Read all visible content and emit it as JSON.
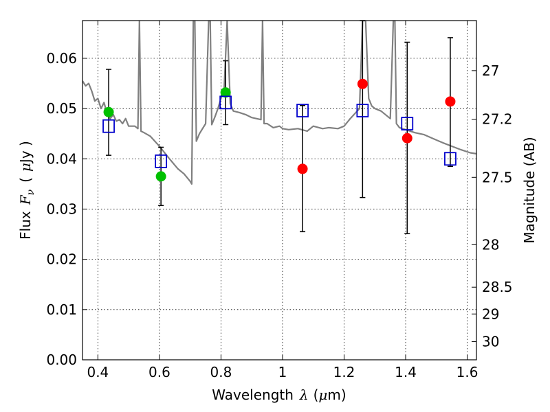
{
  "chart_data": {
    "type": "scatter",
    "xlabel_text": "Wavelength",
    "xlabel_symbol": "λ",
    "xlabel_unit_open": "(",
    "xlabel_unit_mu": "μ",
    "xlabel_unit_rest": "m)",
    "ylabel_text": "Flux",
    "ylabel_symbol": "F",
    "ylabel_subscript": "ν",
    "ylabel_unit_open": "(",
    "ylabel_unit_mu": "μ",
    "ylabel_unit_rest": "Jy )",
    "y2label": "Magnitude (AB)",
    "xlim": [
      0.35,
      1.63
    ],
    "ylim": [
      0.0,
      0.0675
    ],
    "grid": true,
    "x_ticks": [
      0.4,
      0.6,
      0.8,
      1.0,
      1.2,
      1.4,
      1.6
    ],
    "x_tick_labels": [
      "0.4",
      "0.6",
      "0.8",
      "1",
      "1.2",
      "1.4",
      "1.6"
    ],
    "y_ticks": [
      0.0,
      0.01,
      0.02,
      0.03,
      0.04,
      0.05,
      0.06
    ],
    "y_tick_labels": [
      "0.00",
      "0.01",
      "0.02",
      "0.03",
      "0.04",
      "0.05",
      "0.06"
    ],
    "magnitude_ticks": [
      27,
      27.2,
      27.5,
      28,
      28.5,
      29,
      30
    ],
    "magnitude_tick_labels": [
      "27",
      "27.2",
      "27.5",
      "28",
      "28.5",
      "29",
      "30"
    ],
    "series": [
      {
        "marker": "circle",
        "color": "#00c000",
        "x": [
          0.435,
          0.605,
          0.815
        ],
        "y": [
          0.0493,
          0.0365,
          0.0532
        ]
      },
      {
        "marker": "circle",
        "color": "#ff0000",
        "x": [
          1.065,
          1.26,
          1.405,
          1.545
        ],
        "y": [
          0.038,
          0.0549,
          0.0441,
          0.0514
        ]
      },
      {
        "marker": "square-open",
        "color": "#0000cc",
        "x": [
          0.435,
          0.605,
          0.815,
          1.065,
          1.26,
          1.405,
          1.545
        ],
        "y": [
          0.0465,
          0.0395,
          0.0512,
          0.0496,
          0.0496,
          0.047,
          0.04
        ]
      },
      {
        "marker": "errorbar",
        "color": "#000000",
        "x": [
          0.435,
          0.605,
          0.815,
          1.065,
          1.26,
          1.405,
          1.545
        ],
        "y_low": [
          0.0407,
          0.0307,
          0.0468,
          0.0255,
          0.0323,
          0.0251,
          0.0385
        ],
        "y_high": [
          0.0578,
          0.0423,
          0.0595,
          0.0506,
          0.0675,
          0.0632,
          0.0641
        ]
      },
      {
        "marker": "line",
        "color": "#808080",
        "x": [
          0.35,
          0.36,
          0.37,
          0.38,
          0.39,
          0.4,
          0.41,
          0.42,
          0.43,
          0.44,
          0.45,
          0.46,
          0.47,
          0.48,
          0.49,
          0.5,
          0.52,
          0.53,
          0.535,
          0.54,
          0.55,
          0.57,
          0.6,
          0.63,
          0.66,
          0.68,
          0.7,
          0.705,
          0.71,
          0.715,
          0.72,
          0.73,
          0.75,
          0.76,
          0.765,
          0.77,
          0.78,
          0.79,
          0.8,
          0.81,
          0.82,
          0.83,
          0.84,
          0.86,
          0.88,
          0.9,
          0.93,
          0.935,
          0.94,
          0.95,
          0.97,
          0.99,
          1.0,
          1.02,
          1.05,
          1.08,
          1.1,
          1.13,
          1.15,
          1.18,
          1.2,
          1.22,
          1.25,
          1.26,
          1.27,
          1.28,
          1.29,
          1.3,
          1.32,
          1.35,
          1.36,
          1.365,
          1.37,
          1.38,
          1.4,
          1.43,
          1.46,
          1.49,
          1.52,
          1.55,
          1.58,
          1.61,
          1.63
        ],
        "y": [
          0.0555,
          0.0545,
          0.055,
          0.0535,
          0.0515,
          0.052,
          0.05,
          0.0512,
          0.049,
          0.048,
          0.0488,
          0.0475,
          0.0478,
          0.047,
          0.048,
          0.0465,
          0.0465,
          0.046,
          0.0675,
          0.0455,
          0.0452,
          0.0445,
          0.0425,
          0.0402,
          0.038,
          0.037,
          0.0355,
          0.035,
          0.0675,
          0.0675,
          0.0435,
          0.045,
          0.047,
          0.0675,
          0.0675,
          0.0468,
          0.0483,
          0.05,
          0.052,
          0.0535,
          0.0675,
          0.051,
          0.0495,
          0.0492,
          0.0488,
          0.0482,
          0.0478,
          0.0675,
          0.047,
          0.047,
          0.0462,
          0.0465,
          0.046,
          0.0458,
          0.046,
          0.0455,
          0.0465,
          0.046,
          0.0462,
          0.046,
          0.0465,
          0.048,
          0.05,
          0.0675,
          0.0675,
          0.052,
          0.0505,
          0.05,
          0.0495,
          0.048,
          0.0675,
          0.0675,
          0.047,
          0.0462,
          0.0458,
          0.0452,
          0.0448,
          0.044,
          0.0432,
          0.0425,
          0.0418,
          0.0412,
          0.041
        ]
      }
    ]
  }
}
